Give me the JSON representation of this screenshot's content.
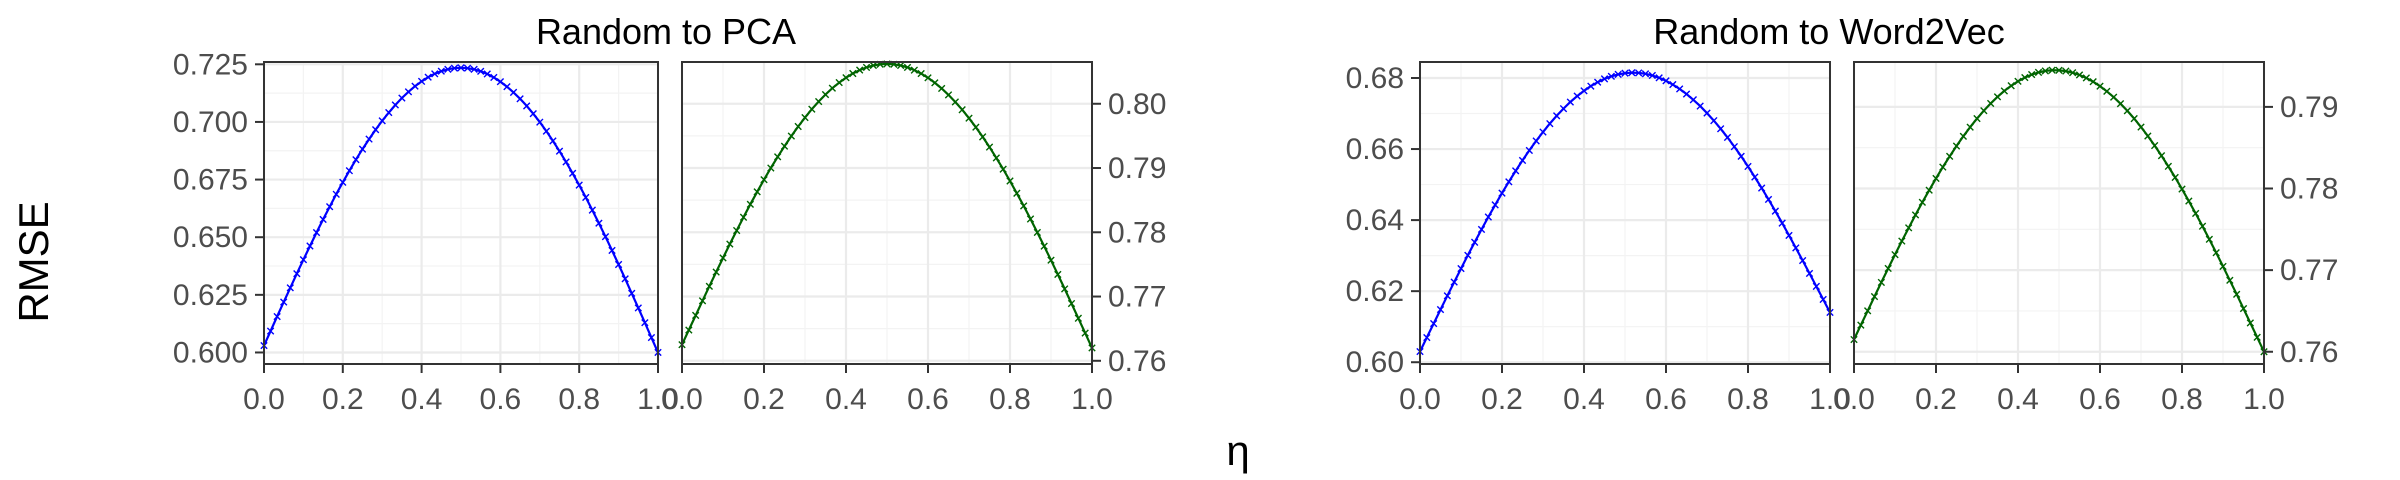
{
  "xlabel": "η",
  "ylabel": "RMSE",
  "chart_data": [
    {
      "type": "line",
      "title": "Random to PCA",
      "yaxis_side": "left",
      "xlim": [
        0,
        1
      ],
      "ylim": [
        0.595,
        0.726
      ],
      "xticks": [
        0.0,
        0.2,
        0.4,
        0.6,
        0.8,
        1.0
      ],
      "xtick_labels": [
        "0.0",
        "0.2",
        "0.4",
        "0.6",
        "0.8",
        "1.0"
      ],
      "yticks": [
        0.6,
        0.625,
        0.65,
        0.675,
        0.7,
        0.725
      ],
      "ytick_labels": [
        "0.600",
        "0.625",
        "0.650",
        "0.675",
        "0.700",
        "0.725"
      ],
      "grid": true,
      "series": [
        {
          "color": "#0000ff",
          "marker": "x",
          "start": 0.603,
          "peak": 0.7235,
          "end": 0.6,
          "peak_x": 0.5
        }
      ]
    },
    {
      "type": "line",
      "title": "",
      "yaxis_side": "right",
      "xlim": [
        0,
        1
      ],
      "ylim": [
        0.7595,
        0.8065
      ],
      "xticks": [
        0.0,
        0.2,
        0.4,
        0.6,
        0.8,
        1.0
      ],
      "xtick_labels": [
        "0.0",
        "0.2",
        "0.4",
        "0.6",
        "0.8",
        "1.0"
      ],
      "yticks": [
        0.76,
        0.77,
        0.78,
        0.79,
        0.8
      ],
      "ytick_labels": [
        "0.76",
        "0.77",
        "0.78",
        "0.79",
        "0.80"
      ],
      "grid": true,
      "series": [
        {
          "color": "#006400",
          "marker": "x",
          "start": 0.7625,
          "peak": 0.8062,
          "end": 0.762,
          "peak_x": 0.5
        }
      ]
    },
    {
      "type": "line",
      "title": "Random to Word2Vec",
      "yaxis_side": "left",
      "xlim": [
        0,
        1
      ],
      "ylim": [
        0.5995,
        0.6845
      ],
      "xticks": [
        0.0,
        0.2,
        0.4,
        0.6,
        0.8,
        1.0
      ],
      "xtick_labels": [
        "0.0",
        "0.2",
        "0.4",
        "0.6",
        "0.8",
        "1.0"
      ],
      "yticks": [
        0.6,
        0.62,
        0.64,
        0.66,
        0.68
      ],
      "ytick_labels": [
        "0.60",
        "0.62",
        "0.64",
        "0.66",
        "0.68"
      ],
      "grid": true,
      "series": [
        {
          "color": "#0000ff",
          "marker": "x",
          "start": 0.603,
          "peak": 0.6815,
          "end": 0.614,
          "peak_x": 0.52
        }
      ]
    },
    {
      "type": "line",
      "title": "",
      "yaxis_side": "right",
      "xlim": [
        0,
        1
      ],
      "ylim": [
        0.7585,
        0.7955
      ],
      "xticks": [
        0.0,
        0.2,
        0.4,
        0.6,
        0.8,
        1.0
      ],
      "xtick_labels": [
        "0.0",
        "0.2",
        "0.4",
        "0.6",
        "0.8",
        "1.0"
      ],
      "yticks": [
        0.76,
        0.77,
        0.78,
        0.79
      ],
      "ytick_labels": [
        "0.76",
        "0.77",
        "0.78",
        "0.79"
      ],
      "grid": true,
      "series": [
        {
          "color": "#006400",
          "marker": "x",
          "start": 0.7615,
          "peak": 0.7945,
          "end": 0.76,
          "peak_x": 0.49
        }
      ]
    }
  ]
}
